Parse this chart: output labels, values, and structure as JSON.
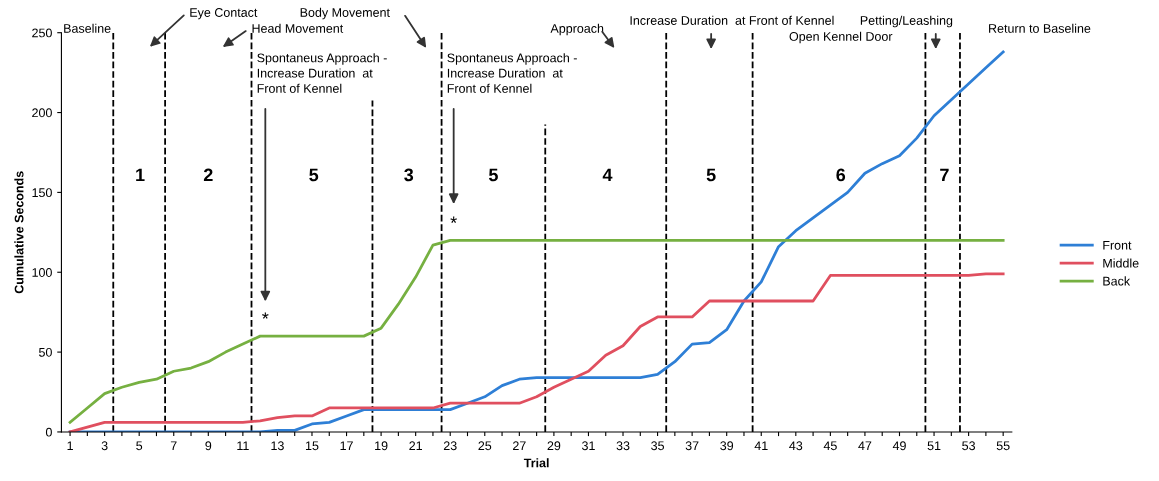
{
  "chart_data": {
    "type": "line",
    "xlabel": "Trial",
    "ylabel": "Cumulative Seconds",
    "x": [
      1,
      2,
      3,
      4,
      5,
      6,
      7,
      8,
      9,
      10,
      11,
      12,
      13,
      14,
      15,
      16,
      17,
      18,
      19,
      20,
      21,
      22,
      23,
      24,
      25,
      26,
      27,
      28,
      29,
      30,
      31,
      32,
      33,
      34,
      35,
      36,
      37,
      38,
      39,
      40,
      41,
      42,
      43,
      44,
      45,
      46,
      47,
      48,
      49,
      50,
      51,
      52,
      53,
      54,
      55
    ],
    "series": [
      {
        "name": "Front",
        "color": "#2e7fd6",
        "values": [
          0,
          0,
          0,
          0,
          0,
          0,
          0,
          0,
          0,
          0,
          0,
          0,
          1,
          1,
          5,
          6,
          10,
          14,
          14,
          14,
          14,
          14,
          14,
          18,
          22,
          29,
          33,
          34,
          34,
          34,
          34,
          34,
          34,
          34,
          36,
          44,
          55,
          56,
          64,
          82,
          94,
          116,
          126,
          134,
          142,
          150,
          162,
          168,
          173,
          184,
          198,
          208,
          218,
          228,
          238
        ]
      },
      {
        "name": "Middle",
        "color": "#e04f5f",
        "values": [
          0,
          3,
          6,
          6,
          6,
          6,
          6,
          6,
          6,
          6,
          6,
          7,
          9,
          10,
          10,
          15,
          15,
          15,
          15,
          15,
          15,
          15,
          18,
          18,
          18,
          18,
          18,
          22,
          28,
          33,
          38,
          48,
          54,
          66,
          72,
          72,
          72,
          82,
          82,
          82,
          82,
          82,
          82,
          82,
          98,
          98,
          98,
          98,
          98,
          98,
          98,
          98,
          98,
          99,
          99
        ]
      },
      {
        "name": "Back",
        "color": "#76b041",
        "values": [
          6,
          15,
          24,
          28,
          31,
          33,
          38,
          40,
          44,
          50,
          55,
          60,
          60,
          60,
          60,
          60,
          60,
          60,
          65,
          80,
          97,
          117,
          120,
          120,
          120,
          120,
          120,
          120,
          120,
          120,
          120,
          120,
          120,
          120,
          120,
          120,
          120,
          120,
          120,
          120,
          120,
          120,
          120,
          120,
          120,
          120,
          120,
          120,
          120,
          120,
          120,
          120,
          120,
          120,
          120
        ]
      }
    ],
    "xlim": [
      0.5,
      55.5
    ],
    "ylim": [
      0,
      250
    ],
    "yticks": [
      0,
      50,
      100,
      150,
      200,
      250
    ],
    "xticks": [
      1,
      {
        "value": 2,
        "label": null
      },
      3,
      {
        "value": 4,
        "label": null
      },
      5,
      {
        "value": 6,
        "label": null
      },
      7,
      {
        "value": 8,
        "label": null
      },
      9,
      {
        "value": 10,
        "label": null
      },
      11,
      {
        "value": 12,
        "label": null
      },
      13,
      {
        "value": 14,
        "label": null
      },
      15,
      {
        "value": 16,
        "label": null
      },
      17,
      {
        "value": 18,
        "label": null
      },
      19,
      {
        "value": 20,
        "label": null
      },
      21,
      {
        "value": 22,
        "label": null
      },
      23,
      {
        "value": 24,
        "label": null
      },
      25,
      {
        "value": 26,
        "label": null
      },
      27,
      {
        "value": 28,
        "label": null
      },
      29,
      {
        "value": 30,
        "label": null
      },
      31,
      {
        "value": 32,
        "label": null
      },
      33,
      {
        "value": 34,
        "label": null
      },
      35,
      {
        "value": 36,
        "label": null
      },
      37,
      {
        "value": 38,
        "label": null
      },
      39,
      {
        "value": 40,
        "label": null
      },
      41,
      {
        "value": 42,
        "label": null
      },
      43,
      {
        "value": 44,
        "label": null
      },
      45,
      {
        "value": 46,
        "label": null
      },
      47,
      {
        "value": 48,
        "label": null
      },
      49,
      {
        "value": 50,
        "label": null
      },
      51,
      {
        "value": 52,
        "label": null
      },
      53,
      {
        "value": 54,
        "label": null
      },
      55
    ],
    "ref_lines": [
      {
        "axis": "x",
        "value": 3.5,
        "color": "#000000",
        "line_style": "dashed"
      },
      {
        "axis": "x",
        "value": 6.5,
        "color": "#000000",
        "line_style": "dashed"
      },
      {
        "axis": "x",
        "value": 11.5,
        "color": "#000000",
        "line_style": "dashed"
      },
      {
        "axis": "x",
        "value": 18.5,
        "color": "#000000",
        "line_style": "dashed"
      },
      {
        "axis": "x",
        "value": 22.5,
        "color": "#000000",
        "line_style": "dashed"
      },
      {
        "axis": "x",
        "value": 28.5,
        "color": "#000000",
        "line_style": "dashed"
      },
      {
        "axis": "x",
        "value": 35.5,
        "color": "#000000",
        "line_style": "dashed"
      },
      {
        "axis": "x",
        "value": 40.5,
        "color": "#000000",
        "line_style": "dashed"
      },
      {
        "axis": "x",
        "value": 50.5,
        "color": "#000000",
        "line_style": "dashed"
      },
      {
        "axis": "x",
        "value": 52.5,
        "color": "#000000",
        "line_style": "dashed"
      }
    ],
    "annotations": [
      "Baseline",
      "Eye Contact",
      "Head Movement",
      "Body Movement",
      "Spontaneus Approach -\nIncrease Duration  at\nFront of Kennel",
      "Spontaneus Approach -\nIncrease Duration  at\nFront of Kennel",
      "Approach",
      "Increase Duration  at Front of Kennel",
      "Open Kennel Door",
      "Petting/Leashing",
      "Return to Baseline",
      "*",
      "*",
      "1",
      "2",
      "5",
      "3",
      "5",
      "4",
      "5",
      "6",
      "7"
    ],
    "legend": "right",
    "line_style": "solid",
    "marker": "none",
    "grid": false
  }
}
